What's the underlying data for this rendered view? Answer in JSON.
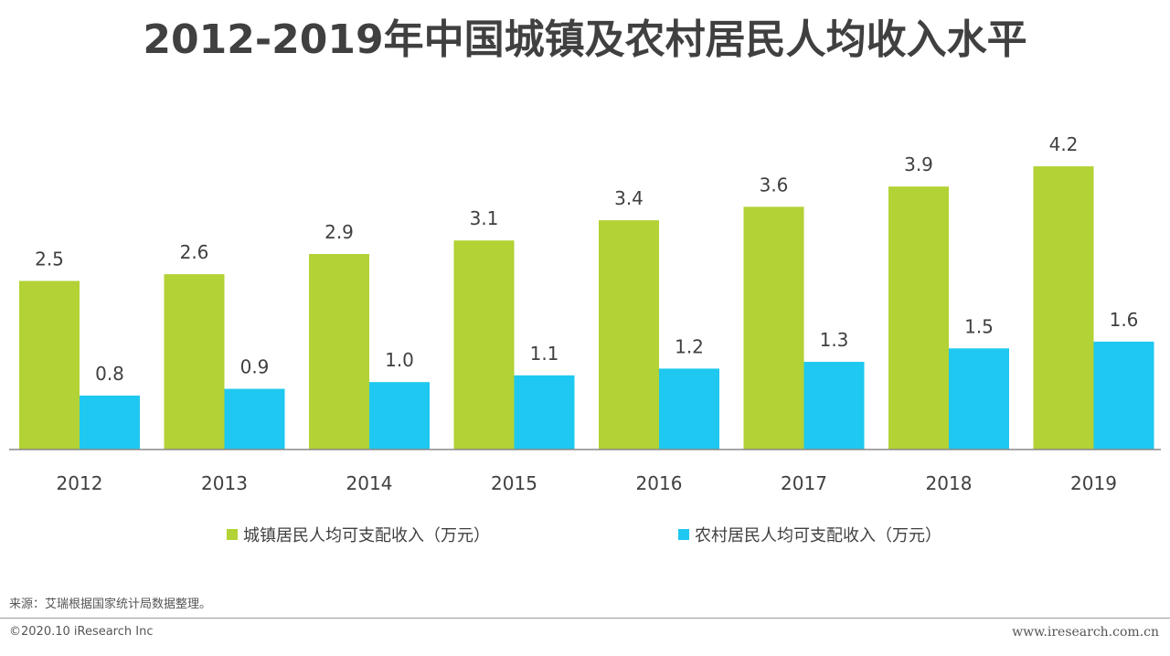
{
  "title": "2012-2019年中国城镇及农村居民人均收入水平",
  "chart_data": {
    "type": "bar",
    "title": "2012-2019年中国城镇及农村居民人均收入水平",
    "categories": [
      "2012",
      "2013",
      "2014",
      "2015",
      "2016",
      "2017",
      "2018",
      "2019"
    ],
    "series": [
      {
        "name": "城镇居民人均可支配收入（万元）",
        "color": "#B2D235",
        "values": [
          2.5,
          2.6,
          2.9,
          3.1,
          3.4,
          3.6,
          3.9,
          4.2
        ],
        "labels": [
          "2.5",
          "2.6",
          "2.9",
          "3.1",
          "3.4",
          "3.6",
          "3.9",
          "4.2"
        ]
      },
      {
        "name": "农村居民人均可支配收入（万元）",
        "color": "#1EC8F0",
        "values": [
          0.8,
          0.9,
          1.0,
          1.1,
          1.2,
          1.3,
          1.5,
          1.6
        ],
        "labels": [
          "0.8",
          "0.9",
          "1.0",
          "1.1",
          "1.2",
          "1.3",
          "1.5",
          "1.6"
        ]
      }
    ],
    "xlabel": "",
    "ylabel": "",
    "ylim": [
      0,
      4.2
    ],
    "grid": false,
    "legend": "bottom",
    "axis_color": "#888888"
  },
  "source": "来源：艾瑞根据国家统计局数据整理。",
  "copyright": "©2020.10 iResearch Inc",
  "website": "www.iresearch.com.cn"
}
